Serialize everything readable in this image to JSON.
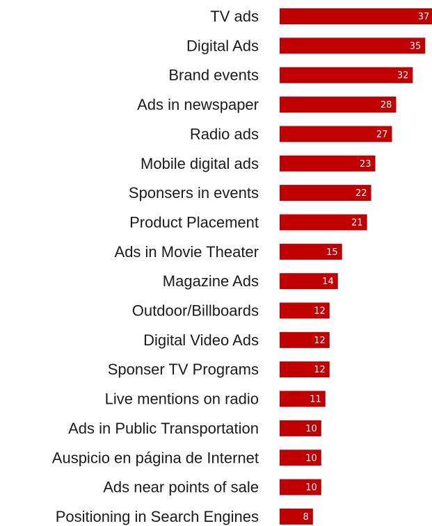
{
  "chart_data": {
    "type": "bar",
    "orientation": "horizontal",
    "categories": [
      "TV ads",
      "Digital Ads",
      "Brand events",
      "Ads in newspaper",
      "Radio ads",
      "Mobile digital ads",
      "Sponsers in events",
      "Product  Placement",
      "Ads in Movie Theater",
      "Magazine Ads",
      "Outdoor/Billboards",
      "Digital Video Ads",
      "Sponser TV Programs",
      "Live mentions on radio",
      "Ads in Public Transportation",
      "Auspicio en página de Internet",
      "Ads near points of sale",
      "Positioning in Search Engines"
    ],
    "values": [
      37,
      35,
      32,
      28,
      27,
      23,
      22,
      21,
      15,
      14,
      12,
      12,
      12,
      11,
      10,
      10,
      10,
      8
    ],
    "bar_color": "#c00000",
    "value_label_color": "#ffffff",
    "data_labels": true,
    "grid": false,
    "legend": "none"
  }
}
